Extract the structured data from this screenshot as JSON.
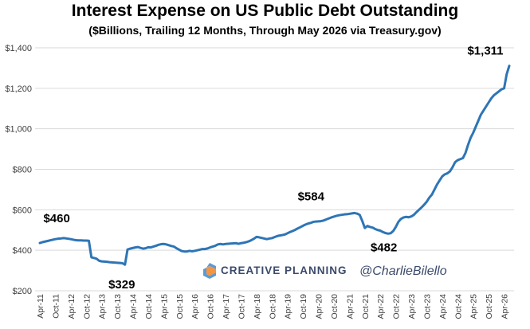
{
  "chart_data": {
    "type": "line",
    "title": "Interest Expense on US Public Debt Outstanding",
    "subtitle": "($Billions, Trailing 12 Months, Through May 2026 via Treasury.gov)",
    "xlabel": "",
    "ylabel": "",
    "ylim": [
      200,
      1400
    ],
    "yticks": [
      "$200",
      "$400",
      "$600",
      "$800",
      "$1,000",
      "$1,200",
      "$1,400"
    ],
    "xticks": [
      "Apr-11",
      "Oct-11",
      "Apr-12",
      "Oct-12",
      "Apr-13",
      "Oct-13",
      "Apr-14",
      "Oct-14",
      "Apr-15",
      "Oct-15",
      "Apr-16",
      "Oct-16",
      "Apr-17",
      "Oct-17",
      "Apr-18",
      "Oct-18",
      "Apr-19",
      "Oct-19",
      "Apr-20",
      "Oct-20",
      "Apr-21",
      "Oct-21",
      "Apr-22",
      "Oct-22",
      "Apr-23",
      "Oct-23",
      "Apr-24",
      "Oct-24",
      "Apr-25",
      "Oct-25",
      "Apr-26"
    ],
    "grid": true,
    "line_color": "#2e75b6",
    "series": [
      {
        "x": [
          0,
          1,
          2,
          3,
          4,
          5,
          6,
          7,
          8,
          9,
          10,
          11,
          12,
          13,
          14,
          15,
          16,
          17,
          18,
          19,
          20,
          21,
          22,
          23,
          24,
          25,
          26,
          27,
          28,
          29,
          30,
          31,
          32,
          33,
          34,
          35,
          36,
          37,
          38,
          39,
          40,
          41,
          42,
          43,
          44,
          45,
          46,
          47,
          48,
          49,
          50,
          51,
          52,
          53,
          54,
          55,
          56,
          57,
          58,
          59,
          60,
          61,
          62,
          63,
          64,
          65,
          66,
          67,
          68,
          69,
          70,
          71,
          72,
          73,
          74,
          75,
          76,
          77,
          78,
          79,
          80,
          81,
          82,
          83,
          84,
          85,
          86,
          87,
          88,
          89,
          90,
          91,
          92,
          93,
          94,
          95,
          96,
          97,
          98,
          99,
          100,
          101,
          102,
          103,
          104,
          105,
          106,
          107,
          108,
          109,
          110,
          111,
          112,
          113,
          114,
          115,
          116,
          117,
          118,
          119,
          120,
          121,
          122,
          123,
          124,
          125,
          126,
          127,
          128,
          129,
          130,
          131,
          132,
          133,
          134,
          135,
          136,
          137,
          138,
          139,
          140,
          141,
          142,
          143,
          144,
          145,
          146,
          147,
          148,
          149,
          150,
          151,
          152,
          153,
          154,
          155,
          156,
          157,
          158,
          159,
          160,
          161,
          162,
          163,
          164,
          165,
          166,
          167,
          168,
          169,
          170,
          171,
          172,
          173,
          174,
          175,
          176,
          177,
          178,
          179,
          180,
          181,
          182
        ],
        "values": [
          436,
          440,
          443,
          446,
          449,
          452,
          455,
          457,
          458,
          460,
          459,
          457,
          455,
          452,
          450,
          449,
          449,
          448,
          448,
          447,
          365,
          362,
          358,
          348,
          345,
          344,
          343,
          341,
          340,
          339,
          338,
          337,
          336,
          329,
          404,
          408,
          411,
          414,
          416,
          412,
          408,
          410,
          415,
          414,
          418,
          422,
          427,
          430,
          431,
          429,
          425,
          421,
          418,
          410,
          403,
          396,
          394,
          394,
          397,
          395,
          397,
          400,
          403,
          406,
          406,
          409,
          414,
          418,
          422,
          429,
          431,
          429,
          431,
          432,
          433,
          434,
          435,
          432,
          435,
          437,
          440,
          444,
          450,
          457,
          466,
          464,
          461,
          458,
          455,
          458,
          460,
          465,
          470,
          473,
          475,
          478,
          484,
          490,
          495,
          501,
          508,
          514,
          521,
          527,
          532,
          535,
          540,
          542,
          543,
          544,
          547,
          552,
          557,
          562,
          566,
          570,
          573,
          575,
          577,
          578,
          580,
          582,
          584,
          581,
          575,
          545,
          510,
          520,
          515,
          512,
          505,
          500,
          497,
          490,
          485,
          482,
          484,
          495,
          515,
          540,
          555,
          562,
          565,
          563,
          567,
          575,
          588,
          600,
          612,
          625,
          640,
          660,
          675,
          700,
          725,
          745,
          765,
          775,
          780,
          790,
          810,
          835,
          845,
          850,
          855,
          880,
          920,
          955,
          980,
          1010,
          1040,
          1070,
          1090,
          1110,
          1130,
          1150,
          1165,
          1175,
          1185,
          1195,
          1200,
          1270,
          1311
        ]
      }
    ],
    "annotations": [
      {
        "text": "$460",
        "x": 9,
        "y": 460
      },
      {
        "text": "$329",
        "x": 33,
        "y": 329
      },
      {
        "text": "$584",
        "x": 107,
        "y": 584
      },
      {
        "text": "$482",
        "x": 134,
        "y": 482
      },
      {
        "text": "$1,311",
        "x": 182,
        "y": 1311
      }
    ]
  },
  "branding": {
    "company": "CREATIVE PLANNING",
    "handle": "@CharlieBilello",
    "logo_colors": [
      "#f58220",
      "#5b9bd5",
      "#3a4a6b"
    ]
  }
}
